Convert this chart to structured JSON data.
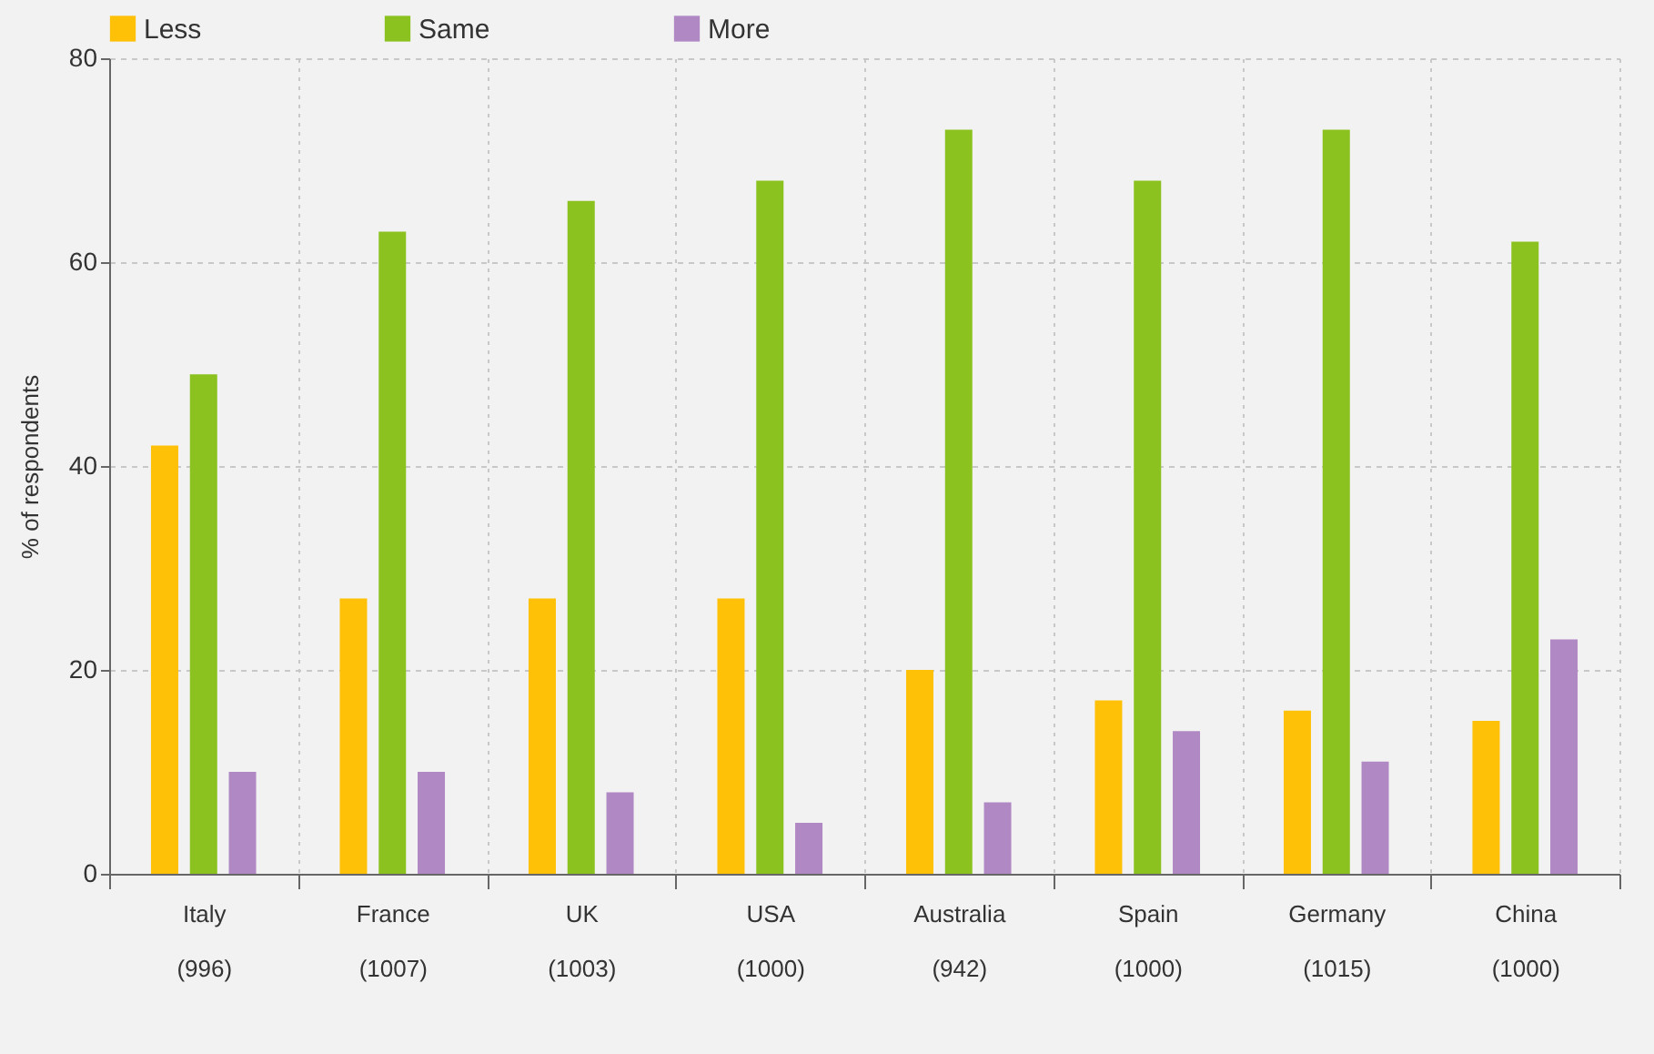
{
  "chart_data": {
    "type": "bar",
    "ylabel": "% of respondents",
    "categories": [
      "Italy\n(996)",
      "France\n(1007)",
      "UK\n(1003)",
      "USA\n(1000)",
      "Australia\n(942)",
      "Spain\n(1000)",
      "Germany\n(1015)",
      "China\n(1000)"
    ],
    "series": [
      {
        "name": "Less",
        "color": "#ffc107",
        "values": [
          42,
          27,
          27,
          27,
          20,
          17,
          16,
          15
        ]
      },
      {
        "name": "Same",
        "color": "#8bc220",
        "values": [
          49,
          63,
          66,
          68,
          73,
          68,
          73,
          62
        ]
      },
      {
        "name": "More",
        "color": "#b088c4",
        "values": [
          10,
          10,
          8,
          5,
          7,
          14,
          11,
          23
        ]
      }
    ],
    "ylim": [
      0,
      80
    ],
    "yticks": [
      0,
      20,
      40,
      60,
      80
    ],
    "grid": true,
    "legend": "top"
  }
}
